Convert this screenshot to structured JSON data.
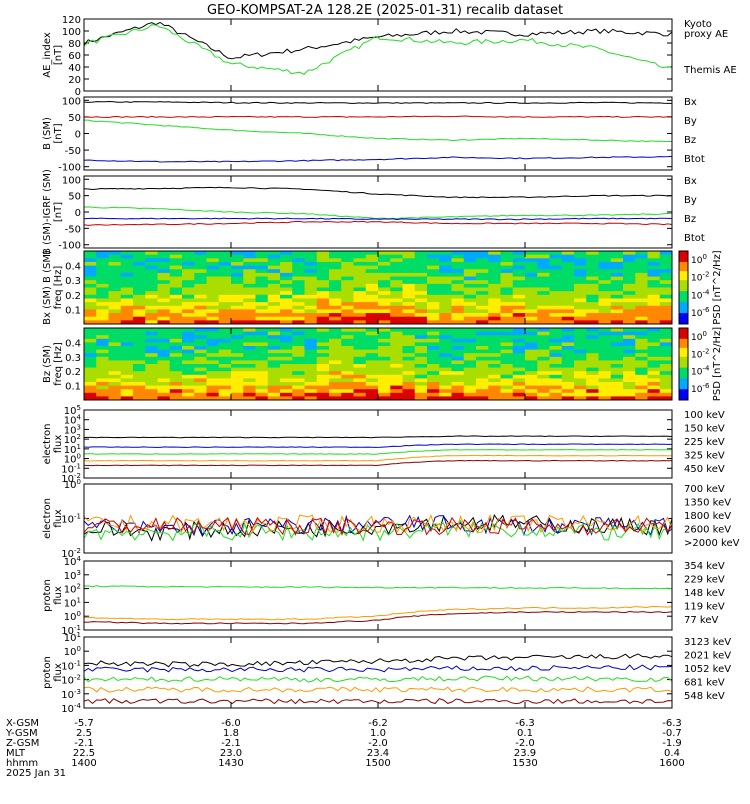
{
  "title": "GEO-KOMPSAT-2A 128.2E (2025-01-31) recalib dataset",
  "colors": {
    "black": "#000000",
    "red": "#cc0000",
    "green": "#22dd22",
    "blue": "#0000cc",
    "orange": "#ff9900",
    "darkred": "#8b0000"
  },
  "panels": [
    {
      "id": "ae",
      "ylabel": [
        "AE_index",
        "[nT]"
      ],
      "ticks": [
        "120",
        "100",
        "80",
        "60",
        "40",
        "20",
        "0"
      ],
      "legend": [
        {
          "text": "Kyoto",
          "color": "green"
        },
        {
          "text": "proxy AE",
          "color": "green"
        },
        {
          "text": "Themis AE",
          "color": "black"
        }
      ]
    },
    {
      "id": "bsm",
      "ylabel": [
        "B (SM)",
        "[nT]"
      ],
      "ticks": [
        "100",
        "50",
        "0",
        "-50",
        "-100"
      ],
      "legend": [
        {
          "text": "Bx",
          "color": "blue"
        },
        {
          "text": "By",
          "color": "green"
        },
        {
          "text": "Bz",
          "color": "red"
        },
        {
          "text": "Btot",
          "color": "black"
        }
      ]
    },
    {
      "id": "bigrf",
      "ylabel": [
        "B (SM)-IGRF (SM)",
        "[nT]"
      ],
      "ticks": [
        "100",
        "50",
        "0",
        "-50",
        "-100"
      ],
      "legend": [
        {
          "text": "Bx",
          "color": "blue"
        },
        {
          "text": "By",
          "color": "green"
        },
        {
          "text": "Bz",
          "color": "red"
        },
        {
          "text": "Btot",
          "color": "black"
        }
      ]
    },
    {
      "id": "spec_bx",
      "ylabel": [
        "Bx (SM) B (SM)",
        "freq [Hz]"
      ],
      "ticks": [
        "0.4",
        "0.3",
        "0.2",
        "0.1"
      ],
      "cbar_ticks": [
        "10^0",
        "10^-2",
        "10^-4",
        "10^-6"
      ],
      "cbar_label": "PSD [nT^2/Hz]"
    },
    {
      "id": "spec_bz",
      "ylabel": [
        "Bz (SM)",
        "freq [Hz]"
      ],
      "ticks": [
        "0.4",
        "0.3",
        "0.2",
        "0.1"
      ],
      "cbar_ticks": [
        "10^0",
        "10^-2",
        "10^-4",
        "10^-6"
      ],
      "cbar_label": "PSD [nT^2/Hz]"
    },
    {
      "id": "elec_low",
      "ylabel": [
        "electron",
        "flux"
      ],
      "ticks": [
        "10^5",
        "10^4",
        "10^3",
        "10^2",
        "10^1",
        "10^0",
        "10^-1",
        "10^-2"
      ],
      "legend": [
        {
          "text": "100 keV",
          "color": "black"
        },
        {
          "text": "150 keV",
          "color": "blue"
        },
        {
          "text": "225 keV",
          "color": "green"
        },
        {
          "text": "325 keV",
          "color": "orange"
        },
        {
          "text": "450 keV",
          "color": "darkred"
        }
      ]
    },
    {
      "id": "elec_high",
      "ylabel": [
        "electron",
        "flux"
      ],
      "ticks": [
        "10^0",
        "10^-1",
        "10^-2"
      ],
      "legend": [
        {
          "text": "700 keV",
          "color": "black"
        },
        {
          "text": "1350 keV",
          "color": "blue"
        },
        {
          "text": "1800 keV",
          "color": "green"
        },
        {
          "text": "2600 keV",
          "color": "orange"
        },
        {
          "text": ">2000 keV",
          "color": "red"
        }
      ]
    },
    {
      "id": "prot_low",
      "ylabel": [
        "proton",
        "flux"
      ],
      "ticks": [
        "10^4",
        "10^3",
        "10^2",
        "10^1",
        "10^0",
        "10^-1"
      ],
      "legend": [
        {
          "text": "354 keV",
          "color": "darkred"
        },
        {
          "text": "229 keV",
          "color": "orange"
        },
        {
          "text": "148 keV",
          "color": "green"
        },
        {
          "text": "119 keV",
          "color": "blue"
        },
        {
          "text": "77 keV",
          "color": "black"
        }
      ]
    },
    {
      "id": "prot_high",
      "ylabel": [
        "proton",
        "flux"
      ],
      "ticks": [
        "10^1",
        "10^0",
        "10^-1",
        "10^-2",
        "10^-3",
        "10^-4"
      ],
      "legend": [
        {
          "text": "3123 keV",
          "color": "darkred"
        },
        {
          "text": "2021 keV",
          "color": "orange"
        },
        {
          "text": "1052 keV",
          "color": "green"
        },
        {
          "text": "681 keV",
          "color": "blue"
        },
        {
          "text": "548 keV",
          "color": "black"
        }
      ]
    }
  ],
  "xaxis": {
    "row_labels": [
      "X-GSM",
      "Y-GSM",
      "Z-GSM",
      "MLT",
      "hhmm",
      "2025 Jan 31"
    ],
    "columns": [
      {
        "values": [
          "-5.7",
          "2.5",
          "-2.1",
          "22.5",
          "1400"
        ]
      },
      {
        "values": [
          "-6.0",
          "1.8",
          "-2.1",
          "23.0",
          "1430"
        ]
      },
      {
        "values": [
          "-6.2",
          "1.0",
          "-2.0",
          "23.4",
          "1500"
        ]
      },
      {
        "values": [
          "-6.3",
          "0.1",
          "-2.0",
          "23.9",
          "1530"
        ]
      },
      {
        "values": [
          "-6.3",
          "-0.7",
          "-1.9",
          "0.4",
          "1600"
        ]
      }
    ]
  },
  "chart_data": {
    "type": "line",
    "title": "GEO-KOMPSAT-2A 128.2E (2025-01-31) recalib dataset",
    "x_unit": "hhmm",
    "x": [
      "1400",
      "1415",
      "1430",
      "1445",
      "1500",
      "1515",
      "1530",
      "1545",
      "1600"
    ],
    "series": [
      {
        "name": "Themis AE",
        "panel": "ae",
        "values": [
          80,
          115,
          55,
          70,
          90,
          100,
          95,
          100,
          95
        ]
      },
      {
        "name": "proxy AE",
        "panel": "ae",
        "values": [
          78,
          110,
          45,
          30,
          90,
          80,
          85,
          70,
          35
        ]
      },
      {
        "name": "Btot",
        "panel": "bsm",
        "values": [
          95,
          95,
          93,
          92,
          92,
          92,
          92,
          93,
          92
        ]
      },
      {
        "name": "Bz",
        "panel": "bsm",
        "values": [
          50,
          50,
          50,
          50,
          50,
          52,
          50,
          50,
          50
        ]
      },
      {
        "name": "By",
        "panel": "bsm",
        "values": [
          40,
          25,
          10,
          0,
          -15,
          -20,
          -15,
          -20,
          -25
        ]
      },
      {
        "name": "Bx",
        "panel": "bsm",
        "values": [
          -80,
          -85,
          -85,
          -82,
          -78,
          -72,
          -75,
          -72,
          -70
        ]
      },
      {
        "name": "100 keV",
        "panel": "elec_low",
        "values": [
          150,
          150,
          150,
          150,
          150,
          200,
          200,
          200,
          200
        ]
      },
      {
        "name": "150 keV",
        "panel": "elec_low",
        "values": [
          15,
          15,
          15,
          15,
          15,
          30,
          30,
          30,
          30
        ]
      },
      {
        "name": "225 keV",
        "panel": "elec_low",
        "values": [
          3,
          3,
          3,
          3,
          3,
          8,
          8,
          8,
          8
        ]
      },
      {
        "name": "325 keV",
        "panel": "elec_low",
        "values": [
          0.6,
          0.6,
          0.6,
          0.6,
          0.6,
          2,
          2,
          2,
          2
        ]
      },
      {
        "name": "450 keV",
        "panel": "elec_low",
        "values": [
          0.2,
          0.2,
          0.2,
          0.2,
          0.2,
          0.6,
          0.6,
          0.6,
          0.6
        ]
      },
      {
        "name": "148 keV",
        "panel": "prot_low",
        "values": [
          150,
          140,
          130,
          130,
          120,
          120,
          110,
          110,
          100
        ]
      },
      {
        "name": "229 keV",
        "panel": "prot_low",
        "values": [
          0.8,
          0.6,
          0.6,
          0.6,
          1,
          3,
          4,
          4,
          5
        ]
      },
      {
        "name": "354 keV",
        "panel": "prot_low",
        "values": [
          0.4,
          0.3,
          0.3,
          0.3,
          0.5,
          1.5,
          2,
          2,
          2
        ]
      },
      {
        "name": "548 keV",
        "panel": "prot_high",
        "values": [
          0.15,
          0.12,
          0.12,
          0.15,
          0.2,
          0.3,
          0.35,
          0.4,
          0.45
        ]
      },
      {
        "name": "681 keV",
        "panel": "prot_high",
        "values": [
          0.05,
          0.05,
          0.05,
          0.05,
          0.05,
          0.06,
          0.06,
          0.07,
          0.07
        ]
      },
      {
        "name": "1052 keV",
        "panel": "prot_high",
        "values": [
          0.01,
          0.01,
          0.012,
          0.01,
          0.01,
          0.012,
          0.012,
          0.012,
          0.01
        ]
      },
      {
        "name": "2021 keV",
        "panel": "prot_high",
        "values": [
          0.002,
          0.002,
          0.002,
          0.002,
          0.002,
          0.002,
          0.002,
          0.002,
          0.002
        ]
      },
      {
        "name": "3123 keV",
        "panel": "prot_high",
        "values": [
          0.0003,
          0.0003,
          0.0003,
          0.0003,
          0.0003,
          0.0003,
          0.0003,
          0.0003,
          0.0003
        ]
      }
    ]
  }
}
